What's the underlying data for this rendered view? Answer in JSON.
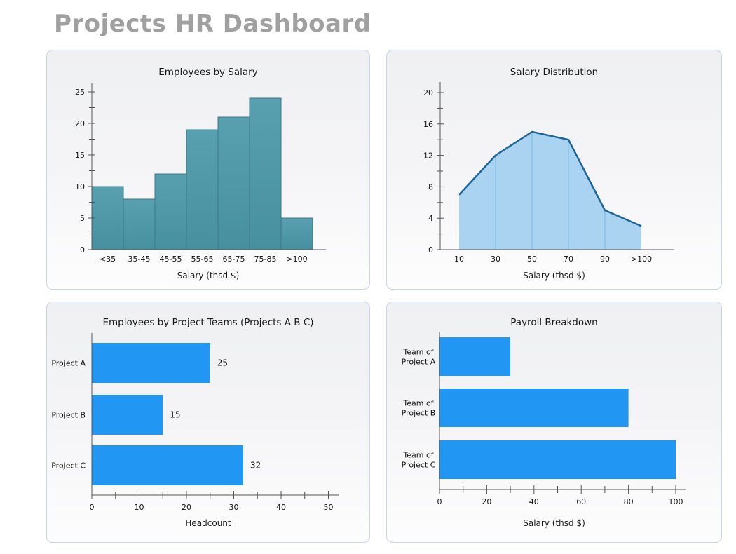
{
  "page_title": "Projects HR Dashboard",
  "colors": {
    "page_title_gray": "#a0a0a0",
    "panel_border": "#c9d2ee",
    "axis": "#555555",
    "text": "#111111",
    "teal_bar_top": "#58a0b0",
    "teal_bar_bottom": "#47909f",
    "teal_bar_stroke": "#3e7888",
    "blue_bar": "#2196f3",
    "area_fill": "#a9d3f0",
    "area_stroke": "#1d6499",
    "area_divider": "#7fb9e3"
  },
  "chart_data": [
    {
      "id": "employees_by_salary",
      "type": "bar",
      "title": "Employees by Salary",
      "categories": [
        "<35",
        "35-45",
        "45-55",
        "55-65",
        "65-75",
        "75-85",
        ">100"
      ],
      "values": [
        10,
        8,
        12,
        19,
        21,
        24,
        5
      ],
      "xlabel": "Salary (thsd $)",
      "ylabel": "",
      "ylim": [
        0,
        25
      ],
      "ytick_step": 5,
      "ytick_minor": 2.5,
      "ytick_labels": [
        "0",
        "5",
        "10",
        "15",
        "20",
        "25"
      ],
      "grid": false,
      "legend": "none"
    },
    {
      "id": "salary_distribution",
      "type": "area",
      "title": "Salary Distribution",
      "categories": [
        "10",
        "30",
        "50",
        "70",
        "90",
        ">100"
      ],
      "values": [
        7,
        12,
        15,
        14,
        5,
        3
      ],
      "xlabel": "Salary (thsd $)",
      "ylabel": "",
      "ylim": [
        0,
        20
      ],
      "ytick_step": 4,
      "ytick_minor": 2,
      "ytick_labels": [
        "0",
        "4",
        "8",
        "12",
        "16",
        "20"
      ],
      "grid": false,
      "legend": "none"
    },
    {
      "id": "employees_by_project_teams",
      "type": "hbar",
      "title": "Employees by Project Teams (Projects A B C)",
      "categories": [
        "Project A",
        "Project B",
        "Project C"
      ],
      "values": [
        25,
        15,
        32
      ],
      "value_labels": [
        "25",
        "15",
        "32"
      ],
      "show_value_labels": true,
      "xlabel": "Headcount",
      "ylabel": "",
      "xlim": [
        0,
        50
      ],
      "xtick_step": 10,
      "xtick_minor": 5,
      "xtick_labels": [
        "0",
        "10",
        "20",
        "30",
        "40",
        "50"
      ],
      "grid": false,
      "legend": "none"
    },
    {
      "id": "payroll_breakdown",
      "type": "hbar",
      "title": "Payroll Breakdown",
      "categories": [
        [
          "Team of",
          "Project A"
        ],
        [
          "Team of",
          "Project B"
        ],
        [
          "Team of",
          "Project C"
        ]
      ],
      "values": [
        30,
        80,
        100
      ],
      "value_labels": [],
      "show_value_labels": false,
      "xlabel": "Salary (thsd $)",
      "ylabel": "",
      "xlim": [
        0,
        100
      ],
      "xtick_step": 20,
      "xtick_minor": 10,
      "xtick_labels": [
        "0",
        "20",
        "40",
        "60",
        "80",
        "100"
      ],
      "grid": false,
      "legend": "none"
    }
  ]
}
